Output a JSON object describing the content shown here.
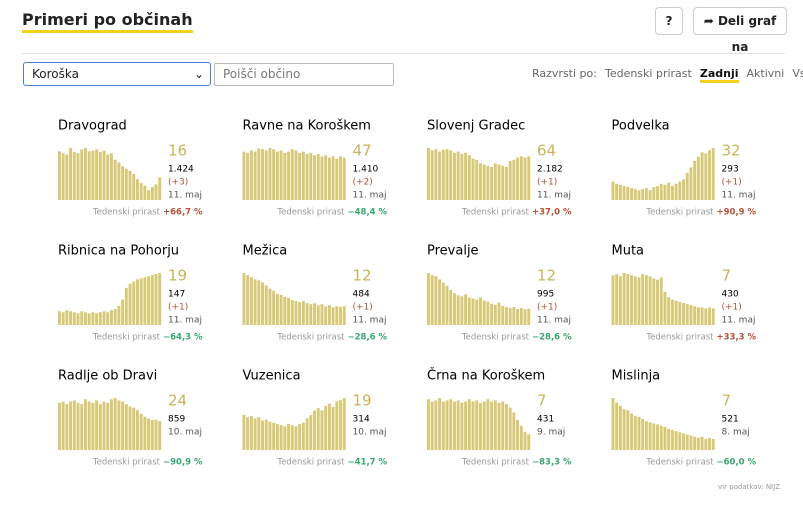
{
  "header": {
    "title": "Primeri po občinah",
    "help": "?",
    "share": "Deli graf na"
  },
  "controls": {
    "region": "Koroška",
    "search_placeholder": "Poišči občino",
    "sort_label": "Razvrsti po:",
    "sort_options": [
      "Tedenski prirast",
      "Zadnji",
      "Aktivni",
      "Vsi"
    ],
    "sort_active": 1
  },
  "growth_label": "Tedenski prirast",
  "panels": [
    {
      "name": "Dravograd",
      "value": 16,
      "total": "1.424",
      "change": "(+3)",
      "date": "11. maj",
      "growth": "+66,7 %",
      "bars": [
        75,
        72,
        70,
        80,
        74,
        72,
        78,
        80,
        75,
        76,
        78,
        74,
        76,
        70,
        72,
        62,
        58,
        52,
        48,
        45,
        40,
        32,
        26,
        22,
        15,
        20,
        24,
        35
      ]
    },
    {
      "name": "Ravne na Koroškem",
      "value": 47,
      "total": "1.410",
      "change": "(+2)",
      "date": "11. maj",
      "growth": "−48,4 %",
      "bars": [
        80,
        78,
        82,
        80,
        85,
        84,
        82,
        86,
        84,
        80,
        82,
        78,
        80,
        84,
        82,
        78,
        80,
        76,
        78,
        74,
        76,
        72,
        74,
        70,
        72,
        68,
        72,
        70
      ]
    },
    {
      "name": "Slovenj Gradec",
      "value": 64,
      "total": "2.182",
      "change": "(+1)",
      "date": "11. maj",
      "growth": "+37,0 %",
      "bars": [
        88,
        84,
        86,
        82,
        85,
        86,
        84,
        80,
        82,
        78,
        80,
        76,
        70,
        68,
        62,
        60,
        58,
        56,
        62,
        60,
        58,
        56,
        66,
        68,
        72,
        74,
        72,
        74
      ]
    },
    {
      "name": "Podvelka",
      "value": 32,
      "total": "293",
      "change": "(+1)",
      "date": "11. maj",
      "growth": "+90,9 %",
      "bars": [
        34,
        30,
        28,
        26,
        24,
        22,
        20,
        18,
        20,
        22,
        18,
        24,
        26,
        30,
        28,
        32,
        26,
        30,
        34,
        38,
        50,
        60,
        72,
        80,
        88,
        86,
        92,
        96
      ]
    },
    {
      "name": "Ribnica na Pohorju",
      "value": 19,
      "total": "147",
      "change": "(+1)",
      "date": "11. maj",
      "growth": "−64,3 %",
      "bars": [
        26,
        24,
        28,
        26,
        24,
        22,
        26,
        24,
        22,
        24,
        22,
        24,
        26,
        24,
        28,
        30,
        36,
        48,
        70,
        78,
        82,
        86,
        88,
        90,
        92,
        94,
        96,
        98
      ]
    },
    {
      "name": "Mežica",
      "value": 12,
      "total": "484",
      "change": "(+1)",
      "date": "11. maj",
      "growth": "−28,6 %",
      "bars": [
        100,
        96,
        92,
        88,
        86,
        82,
        76,
        70,
        66,
        60,
        58,
        54,
        52,
        48,
        46,
        44,
        46,
        42,
        40,
        42,
        38,
        40,
        36,
        38,
        34,
        36,
        35,
        36
      ]
    },
    {
      "name": "Prevalje",
      "value": 12,
      "total": "995",
      "change": "(+1)",
      "date": "11. maj",
      "growth": "−28,6 %",
      "bars": [
        98,
        94,
        92,
        86,
        80,
        74,
        66,
        60,
        56,
        54,
        58,
        52,
        50,
        48,
        52,
        46,
        44,
        40,
        38,
        42,
        36,
        34,
        32,
        34,
        30,
        32,
        30,
        31
      ]
    },
    {
      "name": "Muta",
      "value": 7,
      "total": "430",
      "change": "(+1)",
      "date": "11. maj",
      "growth": "+33,3 %",
      "bars": [
        90,
        92,
        88,
        94,
        92,
        90,
        88,
        86,
        92,
        90,
        88,
        84,
        82,
        86,
        60,
        50,
        46,
        44,
        42,
        40,
        38,
        36,
        34,
        32,
        32,
        30,
        32,
        30
      ]
    },
    {
      "name": "Radlje ob Dravi",
      "value": 24,
      "total": "859",
      "date": "10. maj",
      "growth": "−90,9 %",
      "bars": [
        78,
        80,
        76,
        80,
        82,
        78,
        76,
        84,
        80,
        78,
        82,
        76,
        80,
        78,
        84,
        86,
        82,
        80,
        76,
        72,
        70,
        66,
        60,
        55,
        52,
        50,
        50,
        48
      ]
    },
    {
      "name": "Vuzenica",
      "value": 19,
      "total": "314",
      "date": "10. maj",
      "growth": "−41,7 %",
      "bars": [
        62,
        58,
        60,
        56,
        58,
        52,
        54,
        50,
        48,
        46,
        44,
        42,
        46,
        44,
        42,
        46,
        48,
        56,
        62,
        70,
        74,
        70,
        78,
        82,
        76,
        86,
        88,
        92
      ]
    },
    {
      "name": "Črna na Koroškem",
      "value": 7,
      "total": "431",
      "date": "9. maj",
      "growth": "−83,3 %",
      "bars": [
        84,
        80,
        82,
        86,
        80,
        82,
        84,
        80,
        82,
        78,
        80,
        84,
        80,
        82,
        78,
        80,
        84,
        80,
        82,
        78,
        80,
        76,
        70,
        62,
        50,
        40,
        30,
        26
      ]
    },
    {
      "name": "Mislinja",
      "value": 7,
      "total": "521",
      "date": "8. maj",
      "growth": "−60,0 %",
      "bars": [
        94,
        86,
        80,
        74,
        72,
        66,
        62,
        60,
        56,
        52,
        50,
        48,
        46,
        44,
        42,
        38,
        36,
        34,
        32,
        30,
        28,
        26,
        24,
        22,
        24,
        20,
        22,
        20
      ]
    }
  ],
  "source": "vir podatkov: NIJZ"
}
